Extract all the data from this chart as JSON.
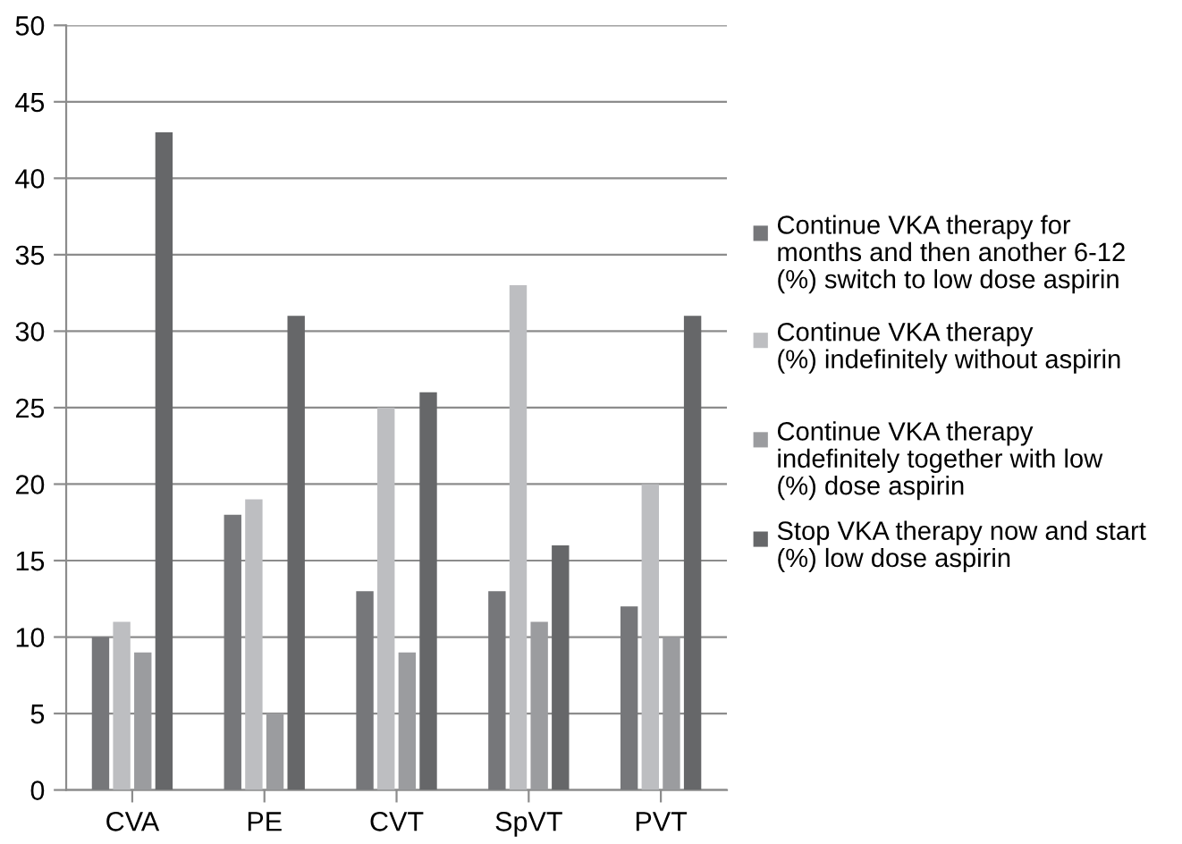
{
  "chart_data": {
    "type": "bar",
    "categories": [
      "CVA",
      "PE",
      "CVT",
      "SpVT",
      "PVT"
    ],
    "series": [
      {
        "name": "Continue VKA therapy for\nmonths and then another 6-12\n(%) switch to low dose aspirin",
        "color": "#76777a",
        "values": [
          10,
          18,
          13,
          13,
          12
        ]
      },
      {
        "name": "Continue VKA therapy\n(%) indefinitely without aspirin",
        "color": "#bdbec1",
        "values": [
          11,
          19,
          25,
          33,
          20
        ]
      },
      {
        "name": "Continue VKA therapy\nindefinitely together with low\n(%) dose aspirin",
        "color": "#9b9c9f",
        "values": [
          9,
          5,
          9,
          11,
          10
        ]
      },
      {
        "name": "Stop VKA therapy now and start\n(%) low dose aspirin",
        "color": "#666769",
        "values": [
          43,
          31,
          26,
          16,
          31
        ]
      }
    ],
    "ylim": [
      0,
      50
    ],
    "yticks": [
      0,
      5,
      10,
      15,
      20,
      25,
      30,
      35,
      40,
      45,
      50
    ],
    "grid": "y",
    "legend": "right"
  }
}
